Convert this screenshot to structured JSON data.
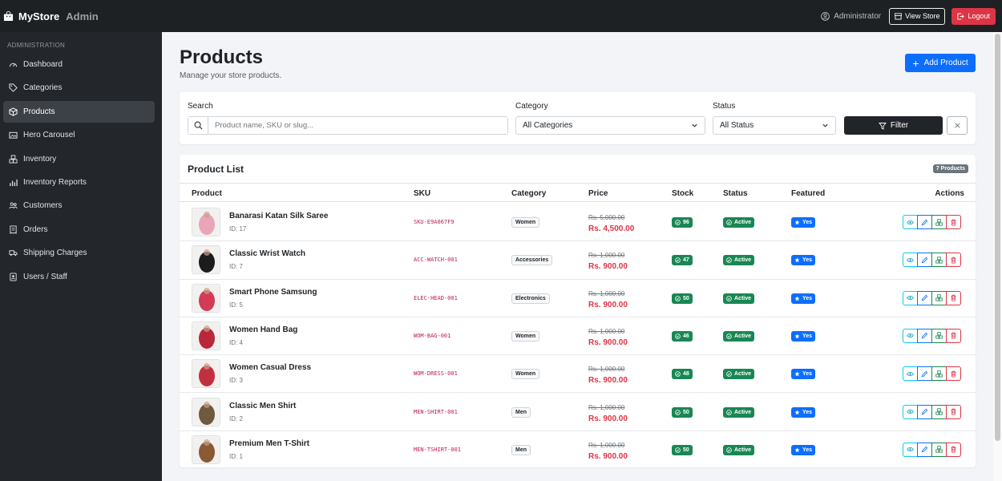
{
  "header": {
    "brand": "MyStore",
    "brand_suffix": "Admin",
    "user": "Administrator",
    "view_store": "View Store",
    "logout": "Logout"
  },
  "sidebar": {
    "heading": "ADMINISTRATION",
    "items": [
      {
        "label": "Dashboard",
        "icon": "speedometer-icon"
      },
      {
        "label": "Categories",
        "icon": "tags-icon"
      },
      {
        "label": "Products",
        "icon": "box-icon",
        "active": true
      },
      {
        "label": "Hero Carousel",
        "icon": "images-icon"
      },
      {
        "label": "Inventory",
        "icon": "boxes-icon"
      },
      {
        "label": "Inventory Reports",
        "icon": "bar-chart-icon"
      },
      {
        "label": "Customers",
        "icon": "people-icon"
      },
      {
        "label": "Orders",
        "icon": "receipt-icon"
      },
      {
        "label": "Shipping Charges",
        "icon": "truck-icon"
      },
      {
        "label": "Users / Staff",
        "icon": "person-badge-icon"
      }
    ]
  },
  "page": {
    "title": "Products",
    "subtitle": "Manage your store products.",
    "add_button": "Add Product"
  },
  "filters": {
    "search_label": "Search",
    "search_placeholder": "Product name, SKU or slug...",
    "category_label": "Category",
    "category_value": "All Categories",
    "status_label": "Status",
    "status_value": "All Status",
    "filter_button": "Filter"
  },
  "list": {
    "title": "Product List",
    "count": "7 Products",
    "columns": {
      "product": "Product",
      "sku": "SKU",
      "category": "Category",
      "price": "Price",
      "stock": "Stock",
      "status": "Status",
      "featured": "Featured",
      "actions": "Actions"
    },
    "rows": [
      {
        "name": "Banarasi Katan Silk Saree",
        "id": "ID: 17",
        "sku": "SKU-E9A067F9",
        "category": "Women",
        "old_price": "Rs. 5,000.00",
        "price": "Rs. 4,500.00",
        "stock": "96",
        "status": "Active",
        "featured": "Yes",
        "thumb_color": "#e9a6b8"
      },
      {
        "name": "Classic Wrist Watch",
        "id": "ID: 7",
        "sku": "ACC-WATCH-001",
        "category": "Accessories",
        "old_price": "Rs. 1,000.00",
        "price": "Rs. 900.00",
        "stock": "47",
        "status": "Active",
        "featured": "Yes",
        "thumb_color": "#1c1c1c"
      },
      {
        "name": "Smart Phone Samsung",
        "id": "ID: 5",
        "sku": "ELEC-HEAD-001",
        "category": "Electronics",
        "old_price": "Rs. 1,000.00",
        "price": "Rs. 900.00",
        "stock": "50",
        "status": "Active",
        "featured": "Yes",
        "thumb_color": "#d33a55"
      },
      {
        "name": "Women Hand Bag",
        "id": "ID: 4",
        "sku": "WOM-BAG-001",
        "category": "Women",
        "old_price": "Rs. 1,000.00",
        "price": "Rs. 900.00",
        "stock": "46",
        "status": "Active",
        "featured": "Yes",
        "thumb_color": "#b8283a"
      },
      {
        "name": "Women Casual Dress",
        "id": "ID: 3",
        "sku": "WOM-DRESS-001",
        "category": "Women",
        "old_price": "Rs. 1,000.00",
        "price": "Rs. 900.00",
        "stock": "48",
        "status": "Active",
        "featured": "Yes",
        "thumb_color": "#c2303f"
      },
      {
        "name": "Classic Men Shirt",
        "id": "ID: 2",
        "sku": "MEN-SHIRT-001",
        "category": "Men",
        "old_price": "Rs. 1,000.00",
        "price": "Rs. 900.00",
        "stock": "50",
        "status": "Active",
        "featured": "Yes",
        "thumb_color": "#6e5a3e"
      },
      {
        "name": "Premium Men T-Shirt",
        "id": "ID: 1",
        "sku": "MEN-TSHIRT-001",
        "category": "Men",
        "old_price": "Rs. 1,000.00",
        "price": "Rs. 900.00",
        "stock": "50",
        "status": "Active",
        "featured": "Yes",
        "thumb_color": "#8a5a35"
      }
    ]
  },
  "colors": {
    "primary": "#0d6efd",
    "success": "#198754",
    "danger": "#dc3545",
    "dark": "#212529",
    "sidebar_bg": "#23272b"
  }
}
